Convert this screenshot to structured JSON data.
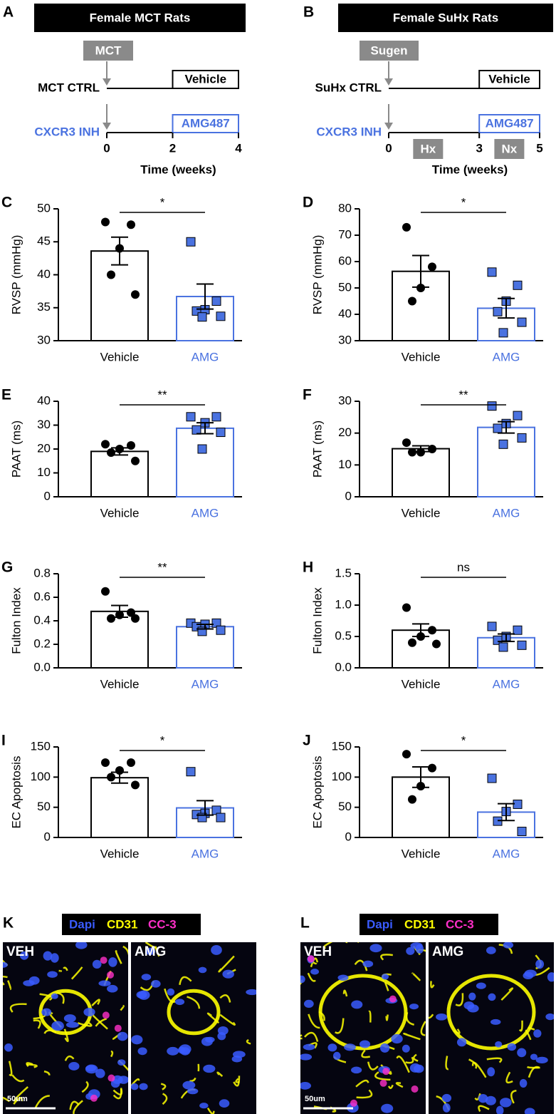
{
  "timelines": [
    {
      "panel": "A",
      "title": "Female MCT Rats",
      "agent": "MCT",
      "control_label": "MCT CTRL",
      "inhibitor_label": "CXCR3 INH",
      "control_box": "Vehicle",
      "inhibitor_box": "AMG487",
      "xlim": [
        0,
        4
      ],
      "xticks": [
        0,
        2,
        4
      ],
      "xlabel": "Time (weeks)"
    },
    {
      "panel": "B",
      "title": "Female SuHx Rats",
      "agent": "Sugen",
      "control_label": "SuHx CTRL",
      "inhibitor_label": "CXCR3 INH",
      "control_box": "Vehicle",
      "inhibitor_box": "AMG487",
      "phases": [
        "Hx",
        "Nx"
      ],
      "xlim": [
        0,
        5
      ],
      "xticks": [
        0,
        3,
        5
      ],
      "xlabel": "Time (weeks)"
    }
  ],
  "chart_data": [
    {
      "type": "bar",
      "panel": "C",
      "ylabel": "RVSP (mmHg)",
      "categories": [
        "Vehicle",
        "AMG"
      ],
      "colors": [
        "#000000",
        "#4a72e0"
      ],
      "values": [
        43.6,
        36.7
      ],
      "errors": [
        2.1,
        1.9
      ],
      "points": [
        [
          48,
          47.6,
          44,
          40,
          37
        ],
        [
          45,
          36,
          34.7,
          34.5,
          33.7,
          33.6
        ]
      ],
      "significance": "*",
      "ylim": [
        30,
        50
      ],
      "yticks": [
        30,
        35,
        40,
        45,
        50
      ]
    },
    {
      "type": "bar",
      "panel": "D",
      "ylabel": "RVSP (mmHg)",
      "categories": [
        "Vehicle",
        "AMG"
      ],
      "colors": [
        "#000000",
        "#4a72e0"
      ],
      "values": [
        56.3,
        42.3
      ],
      "errors": [
        6,
        3.7
      ],
      "points": [
        [
          73,
          58,
          50,
          45
        ],
        [
          56,
          51,
          45,
          41,
          37,
          33
        ]
      ],
      "significance": "*",
      "ylim": [
        30,
        80
      ],
      "yticks": [
        30,
        40,
        50,
        60,
        70,
        80
      ]
    },
    {
      "type": "bar",
      "panel": "E",
      "ylabel": "PAAT (ms)",
      "categories": [
        "Vehicle",
        "AMG"
      ],
      "colors": [
        "#000000",
        "#4a72e0"
      ],
      "values": [
        19,
        28.7
      ],
      "errors": [
        1.5,
        2.3
      ],
      "points": [
        [
          22,
          21.5,
          20,
          18.5,
          15
        ],
        [
          33.5,
          33.5,
          31,
          28,
          27,
          20
        ]
      ],
      "significance": "**",
      "ylim": [
        0,
        40
      ],
      "yticks": [
        0,
        10,
        20,
        30,
        40
      ]
    },
    {
      "type": "bar",
      "panel": "F",
      "ylabel": "PAAT (ms)",
      "categories": [
        "Vehicle",
        "AMG"
      ],
      "colors": [
        "#000000",
        "#4a72e0"
      ],
      "values": [
        15.1,
        21.8
      ],
      "errors": [
        0.9,
        1.8
      ],
      "points": [
        [
          17,
          15,
          14,
          14
        ],
        [
          28.5,
          25.5,
          23,
          21.5,
          18.5,
          16.5
        ]
      ],
      "significance": "**",
      "ylim": [
        0,
        30
      ],
      "yticks": [
        0,
        10,
        20,
        30
      ]
    },
    {
      "type": "bar",
      "panel": "G",
      "ylabel": "Fulton Index",
      "categories": [
        "Vehicle",
        "AMG"
      ],
      "colors": [
        "#000000",
        "#4a72e0"
      ],
      "values": [
        0.48,
        0.35
      ],
      "errors": [
        0.05,
        0.02
      ],
      "points": [
        [
          0.65,
          0.47,
          0.45,
          0.42,
          0.42
        ],
        [
          0.38,
          0.38,
          0.37,
          0.35,
          0.32,
          0.31
        ]
      ],
      "significance": "**",
      "ylim": [
        0,
        0.8
      ],
      "yticks": [
        {
          "value": 0,
          "label": "0.0"
        },
        0.2,
        0.4,
        0.6,
        0.8
      ]
    },
    {
      "type": "bar",
      "panel": "H",
      "ylabel": "Fulton Index",
      "categories": [
        "Vehicle",
        "AMG"
      ],
      "colors": [
        "#000000",
        "#4a72e0"
      ],
      "values": [
        0.6,
        0.48
      ],
      "errors": [
        0.1,
        0.06
      ],
      "points": [
        [
          0.96,
          0.6,
          0.5,
          0.4,
          0.38
        ],
        [
          0.66,
          0.6,
          0.5,
          0.44,
          0.36,
          0.33
        ]
      ],
      "significance": "ns",
      "ylim": [
        0,
        1.5
      ],
      "yticks": [
        {
          "value": 0,
          "label": "0.0"
        },
        0.5,
        {
          "value": 1,
          "label": "1.0"
        },
        1.5
      ]
    },
    {
      "type": "bar",
      "panel": "I",
      "ylabel": "EC Apoptosis",
      "categories": [
        "Vehicle",
        "AMG"
      ],
      "colors": [
        "#000000",
        "#4a72e0"
      ],
      "values": [
        99,
        49
      ],
      "errors": [
        9,
        12
      ],
      "points": [
        [
          124,
          124,
          111,
          100,
          87
        ],
        [
          109,
          45,
          40,
          38,
          33,
          33
        ]
      ],
      "significance": "*",
      "ylim": [
        0,
        150
      ],
      "yticks": [
        0,
        50,
        100,
        150
      ]
    },
    {
      "type": "bar",
      "panel": "J",
      "ylabel": "EC Apoptosis",
      "categories": [
        "Vehicle",
        "AMG"
      ],
      "colors": [
        "#000000",
        "#4a72e0"
      ],
      "values": [
        100,
        42
      ],
      "errors": [
        17,
        14
      ],
      "points": [
        [
          138,
          115,
          85,
          63
        ],
        [
          98,
          55,
          43,
          27,
          10
        ]
      ],
      "significance": "*",
      "ylim": [
        0,
        150
      ],
      "yticks": [
        0,
        50,
        100,
        150
      ]
    }
  ],
  "images": [
    {
      "panel": "K",
      "stains": [
        "Dapi",
        "CD31",
        "CC-3"
      ],
      "stain_colors": [
        "#3a5cff",
        "#ffff00",
        "#ff2fc8"
      ],
      "labels": [
        "VEH",
        "AMG"
      ],
      "scale": "50um"
    },
    {
      "panel": "L",
      "stains": [
        "Dapi",
        "CD31",
        "CC-3"
      ],
      "stain_colors": [
        "#3a5cff",
        "#ffff00",
        "#ff2fc8"
      ],
      "labels": [
        "VEH",
        "AMG"
      ],
      "scale": "50um"
    }
  ]
}
